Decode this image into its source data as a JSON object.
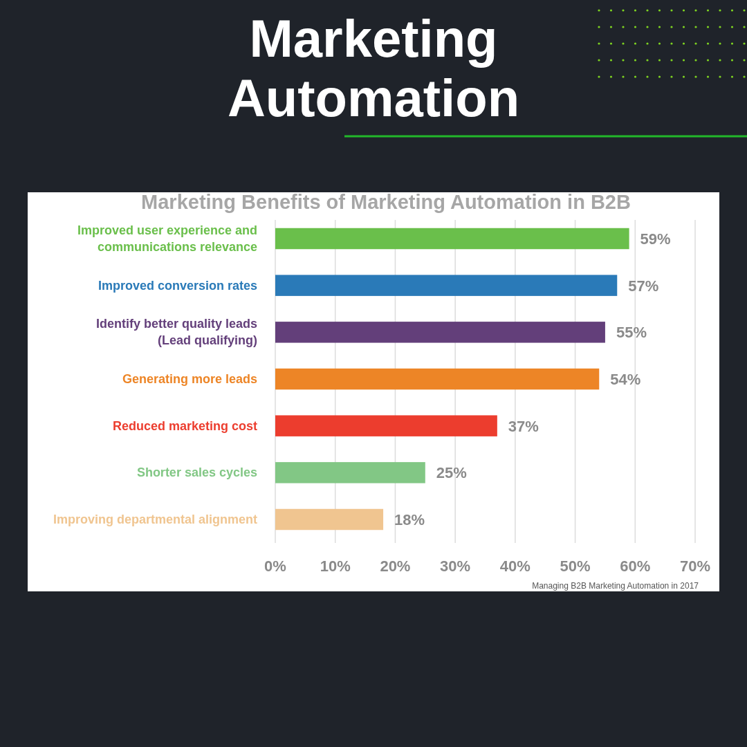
{
  "chart_data": {
    "type": "bar",
    "orientation": "horizontal",
    "title": "Marketing Automation",
    "subtitle": "Marketing Benefits of Marketing Automation in B2B",
    "categories": [
      "Improved user experience and communications relevance",
      "Improved conversion rates",
      "Identify better quality leads (Lead qualifying)",
      "Generating more leads",
      "Reduced marketing cost",
      "Shorter sales cycles",
      "Improving departmental alignment"
    ],
    "values": [
      59,
      57,
      55,
      54,
      37,
      25,
      18
    ],
    "colors": [
      "#6abf4b",
      "#2a7ab8",
      "#633f7a",
      "#ed8526",
      "#ec3d2e",
      "#82c785",
      "#f0c590"
    ],
    "value_labels": [
      "59%",
      "57%",
      "55%",
      "54%",
      "37%",
      "25%",
      "18%"
    ],
    "xlim": [
      0,
      70
    ],
    "xticks": [
      {
        "value": 0,
        "label": "0%"
      },
      {
        "value": 10,
        "label": "10%"
      },
      {
        "value": 20,
        "label": "20%"
      },
      {
        "value": 30,
        "label": "30%"
      },
      {
        "value": 40,
        "label": "40%"
      },
      {
        "value": 50,
        "label": "50%"
      },
      {
        "value": 60,
        "label": "60%"
      },
      {
        "value": 70,
        "label": "70%"
      }
    ],
    "grid": "x",
    "annotations": [
      "Managing B2B Marketing Automation in 2017"
    ]
  }
}
